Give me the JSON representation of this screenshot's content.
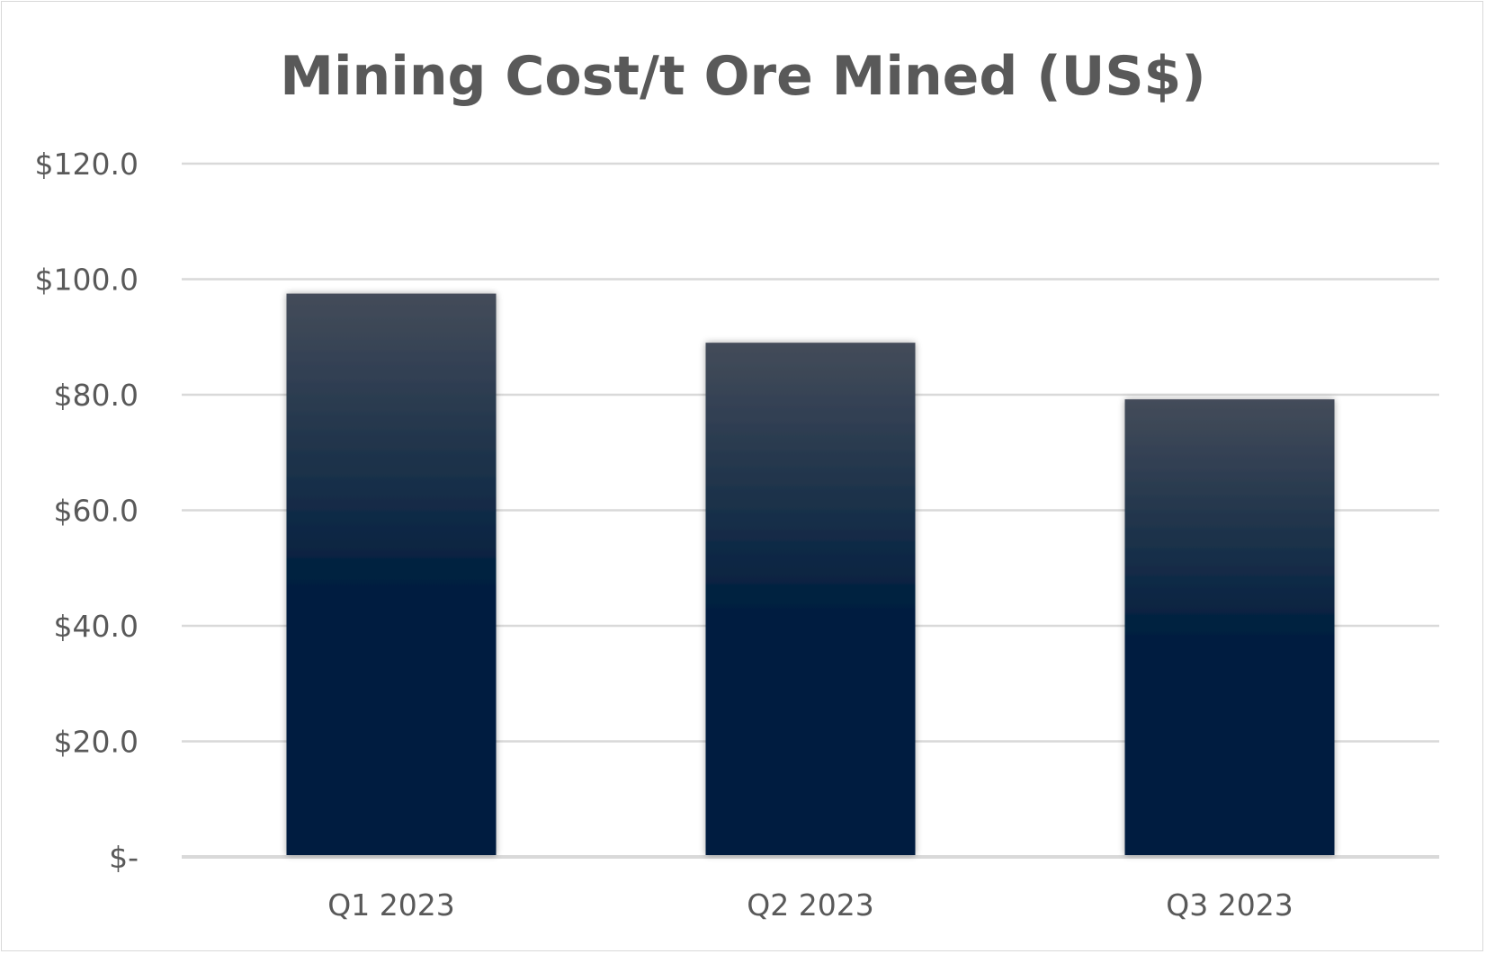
{
  "chart_data": {
    "type": "bar",
    "title": "Mining Cost/t Ore Mined (US$)",
    "xlabel": "",
    "ylabel": "",
    "categories": [
      "Q1 2023",
      "Q2 2023",
      "Q3 2023"
    ],
    "values": [
      97.5,
      89.0,
      79.2
    ],
    "ylim": [
      0,
      120
    ],
    "yticks": [
      0,
      20,
      40,
      60,
      80,
      100,
      120
    ],
    "ytick_labels": [
      "$-",
      "$20.0",
      "$40.0",
      "$60.0",
      "$80.0",
      "$100.0",
      "$120.0"
    ],
    "grid": true,
    "legend": "none",
    "colors": {
      "bar_top": "#444c5a",
      "bar_bottom": "#001f3f",
      "gridline": "#d9d9d9",
      "text": "#595959"
    }
  }
}
